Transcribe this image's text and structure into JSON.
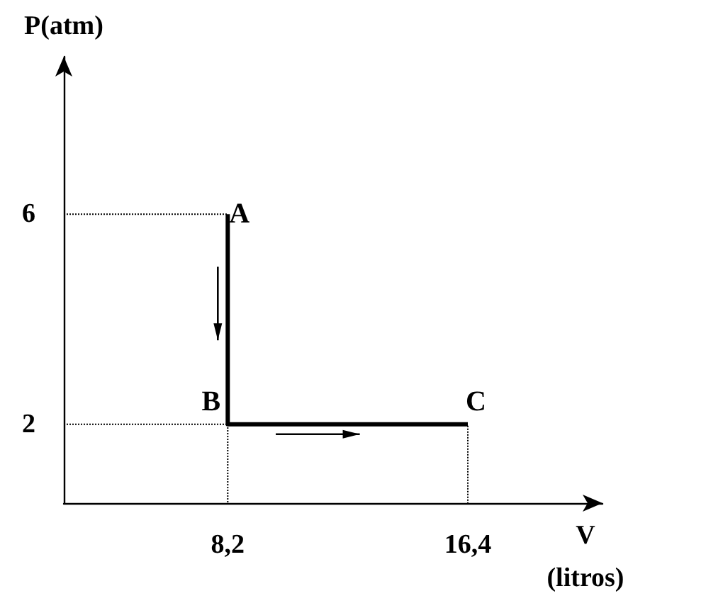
{
  "chart_data": {
    "type": "line",
    "xlabel": "V (litros)",
    "ylabel": "P(atm)",
    "xlim": [
      2.6,
      21
    ],
    "ylim": [
      0.5,
      9
    ],
    "xticks": [
      {
        "value": 8.2,
        "label": "8,2"
      },
      {
        "value": 16.4,
        "label": "16,4"
      }
    ],
    "yticks": [
      2,
      6
    ],
    "grid": false,
    "marker": "none",
    "series": [
      {
        "color": "#000000",
        "x": [
          8.2,
          8.2,
          16.4
        ],
        "values": [
          6,
          2,
          2
        ],
        "line_style": "solid",
        "value_labels": [
          "A",
          "B",
          "C"
        ]
      },
      {
        "color": "#000000",
        "x": [
          2.6,
          8.2,
          8.2
        ],
        "values": [
          6,
          6,
          0.5
        ],
        "line_style": "dotted"
      },
      {
        "color": "#000000",
        "x": [
          2.6,
          16.4,
          16.4
        ],
        "values": [
          2,
          2,
          0.5
        ],
        "line_style": "dotted"
      }
    ]
  }
}
